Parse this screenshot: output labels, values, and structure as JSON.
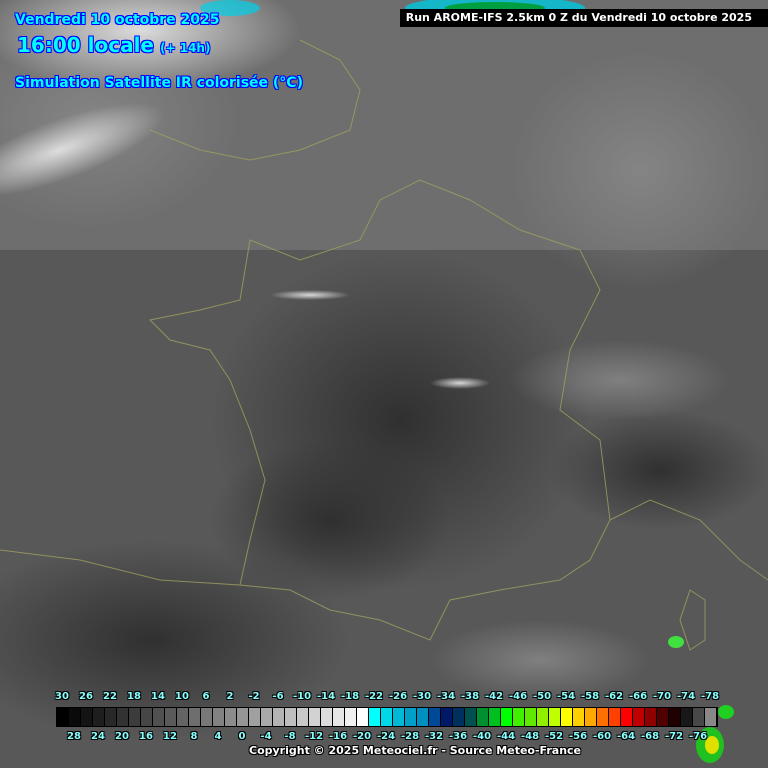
{
  "header": {
    "date": "Vendredi 10 octobre 2025",
    "time": "16:00 locale",
    "offset": "(+ 14h)",
    "title": "Simulation Satellite IR colorisée (°C)",
    "run": "Run AROME-IFS 2.5km 0 Z du Vendredi 10 octobre 2025"
  },
  "legend": {
    "unit": "°C",
    "values": [
      30,
      28,
      26,
      24,
      22,
      20,
      18,
      16,
      14,
      12,
      10,
      8,
      6,
      4,
      2,
      0,
      -2,
      -4,
      -6,
      -8,
      -10,
      -12,
      -14,
      -16,
      -18,
      -20,
      -22,
      -24,
      -26,
      -28,
      -30,
      -32,
      -34,
      -36,
      -38,
      -40,
      -42,
      -44,
      -46,
      -48,
      -50,
      -52,
      -54,
      -56,
      -58,
      -60,
      -62,
      -64,
      -66,
      -68,
      -70,
      -72,
      -74,
      -76,
      -78
    ],
    "top_labels": [
      "30",
      "26",
      "22",
      "18",
      "14",
      "10",
      "6",
      "2",
      "-2",
      "-6",
      "-10",
      "-14",
      "-18",
      "-22",
      "-26",
      "-30",
      "-34",
      "-38",
      "-42",
      "-46",
      "-50",
      "-54",
      "-58",
      "-62",
      "-66",
      "-70",
      "-74",
      "-78"
    ],
    "bottom_labels": [
      "28",
      "24",
      "20",
      "16",
      "12",
      "8",
      "4",
      "0",
      "-4",
      "-8",
      "-12",
      "-16",
      "-20",
      "-24",
      "-28",
      "-32",
      "-36",
      "-40",
      "-44",
      "-48",
      "-52",
      "-56",
      "-60",
      "-64",
      "-68",
      "-72",
      "-76"
    ],
    "colors": [
      "#000000",
      "#0a0a0a",
      "#141414",
      "#1e1e1e",
      "#282828",
      "#323232",
      "#3c3c3c",
      "#464646",
      "#505050",
      "#5a5a5a",
      "#646464",
      "#6e6e6e",
      "#787878",
      "#828282",
      "#8c8c8c",
      "#969696",
      "#a0a0a0",
      "#aaaaaa",
      "#b4b4b4",
      "#bebebe",
      "#c8c8c8",
      "#d2d2d2",
      "#dcdcdc",
      "#e6e6e6",
      "#f0f0f0",
      "#ffffff",
      "#00ffff",
      "#00d8e8",
      "#00b8d8",
      "#00a0c8",
      "#0090c0",
      "#004898",
      "#001868",
      "#003060",
      "#005050",
      "#009030",
      "#00c020",
      "#00ff00",
      "#40f000",
      "#60e800",
      "#90f000",
      "#c0ff00",
      "#ffff00",
      "#ffd000",
      "#ffa800",
      "#ff7000",
      "#ff4000",
      "#ff0000",
      "#c00000",
      "#900000",
      "#500000",
      "#200000",
      "#181818",
      "#484848",
      "#888888"
    ]
  },
  "copyright": "Copyright © 2025 Meteociel.fr - Source Meteo-France",
  "colors": {
    "header_text": "#00ffff",
    "header_outline": "#0000ff",
    "border_lines": "#a0a060"
  }
}
